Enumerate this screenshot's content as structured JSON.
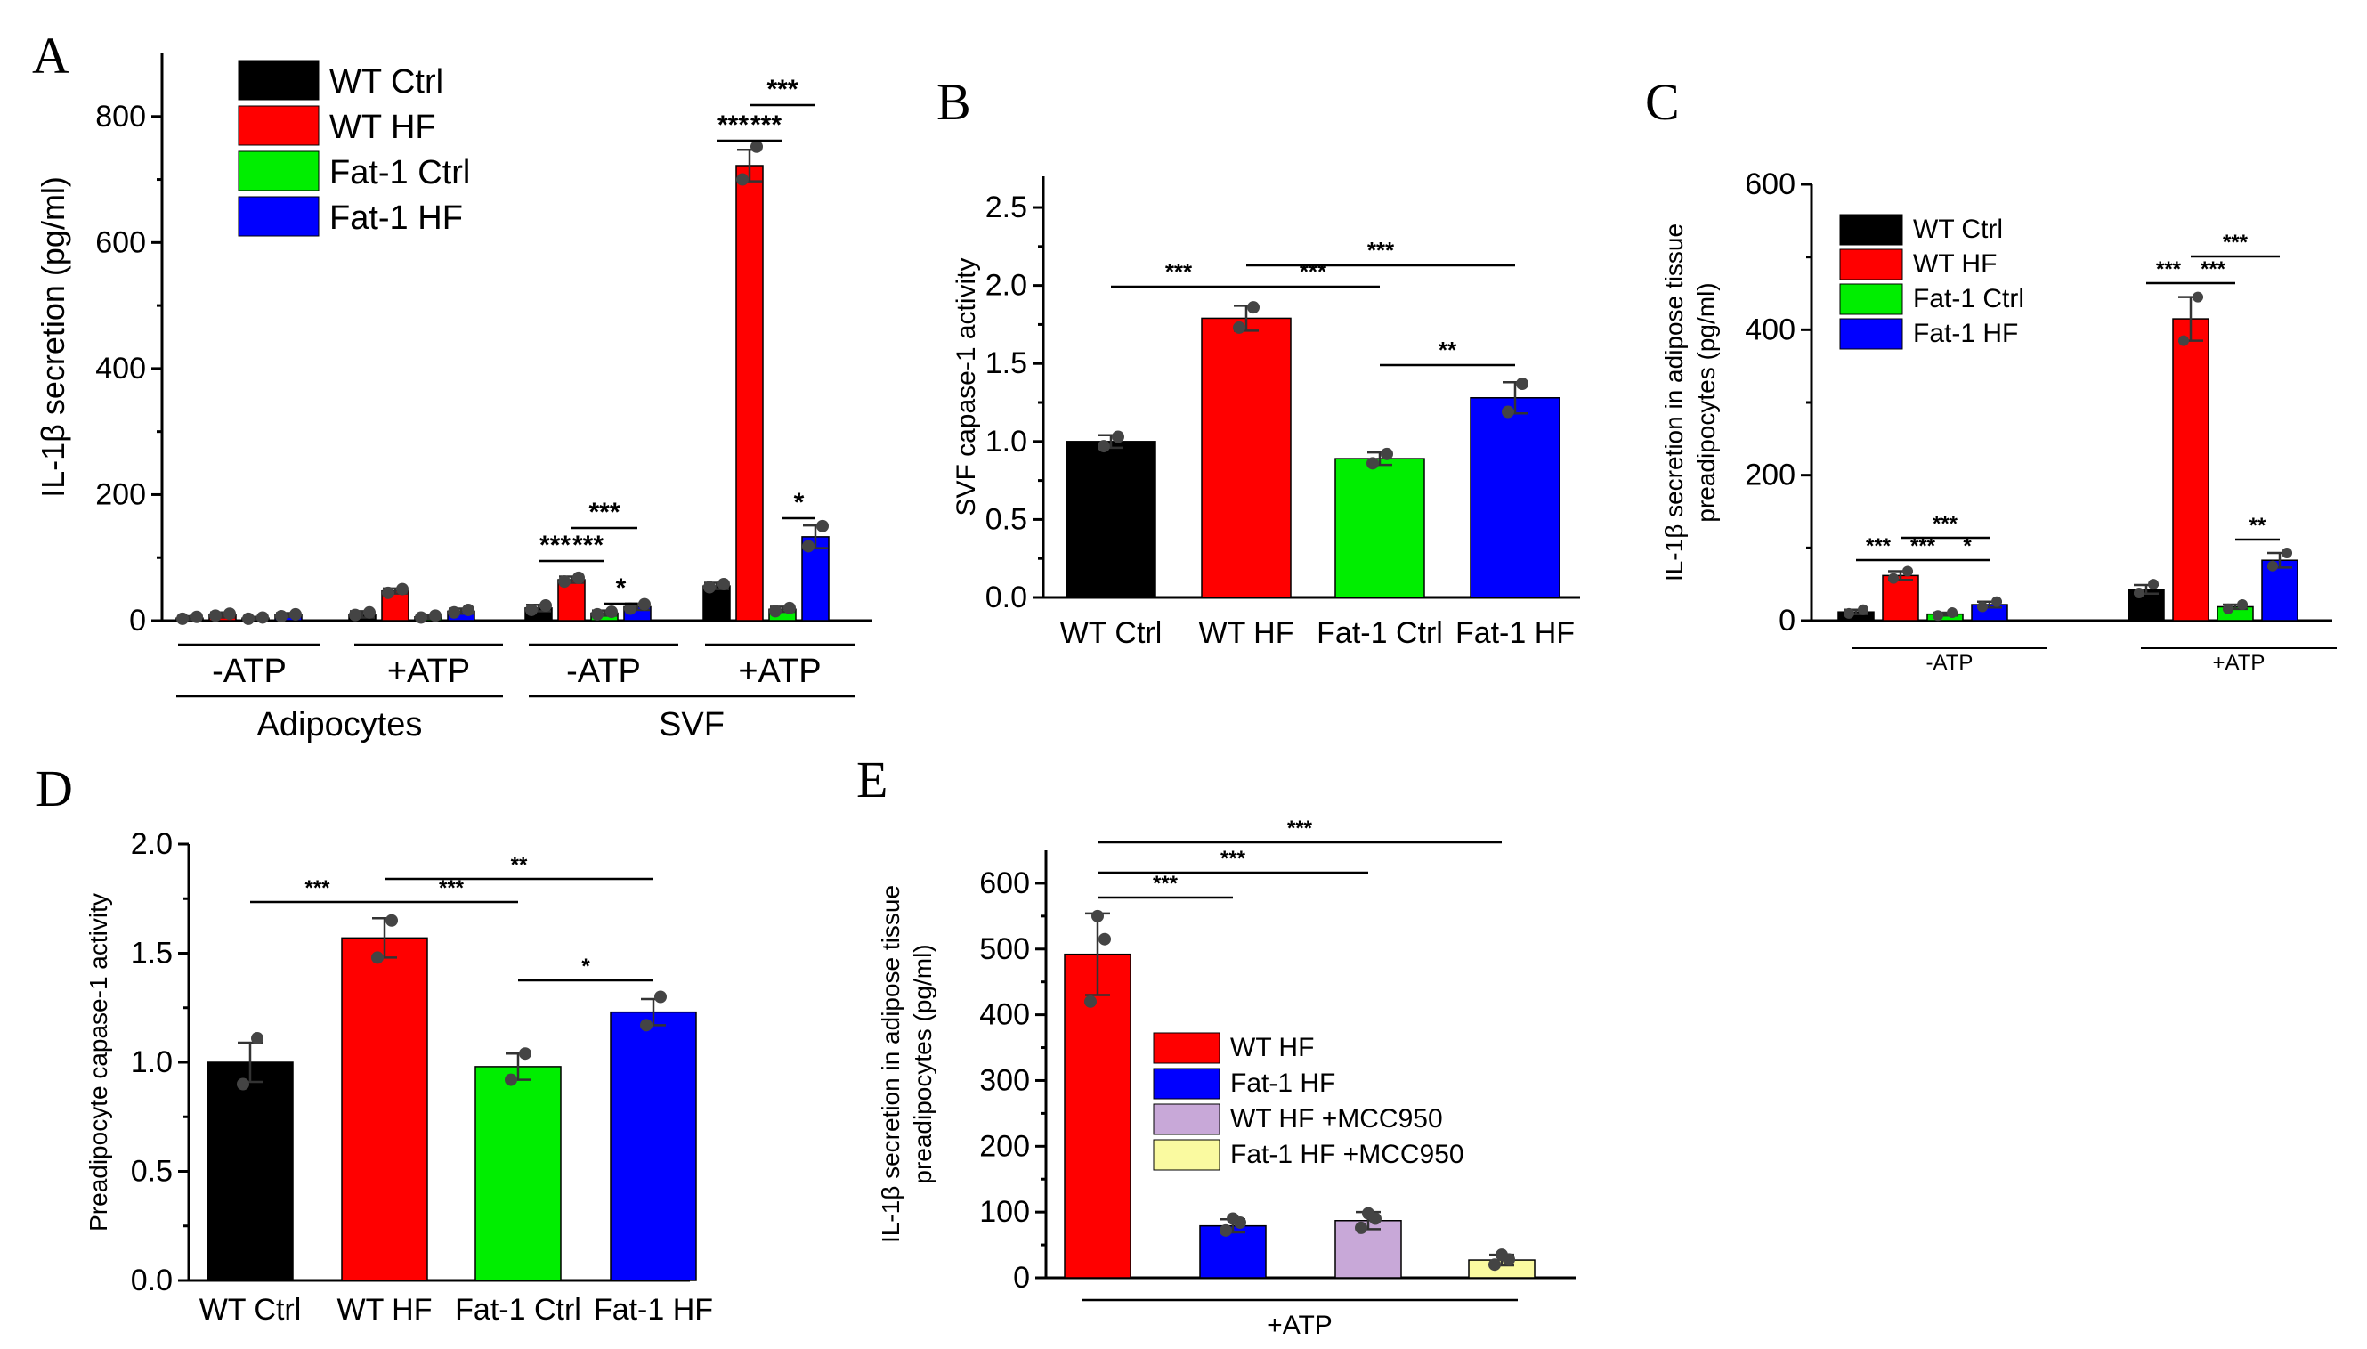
{
  "chart_data": [
    {
      "panel": "A",
      "type": "bar",
      "ylabel": "IL-1β secretion (pg/ml)",
      "ylim": [
        0,
        900
      ],
      "yticks": [
        0,
        200,
        400,
        600,
        800
      ],
      "legend": [
        "WT Ctrl",
        "WT HF",
        "Fat-1 Ctrl",
        "Fat-1 HF"
      ],
      "colors": [
        "#000000",
        "#ff0000",
        "#00ee00",
        "#0000ff"
      ],
      "groups": [
        {
          "label": "-ATP",
          "values": [
            4,
            9,
            4,
            9
          ],
          "errors": [
            3,
            4,
            2,
            3
          ],
          "points": [
            [
              3,
              6
            ],
            [
              8,
              11
            ],
            [
              3,
              5
            ],
            [
              7,
              10
            ]
          ]
        },
        {
          "label": "+ATP",
          "values": [
            10,
            47,
            6,
            15
          ],
          "errors": [
            5,
            4,
            3,
            4
          ],
          "points": [
            [
              9,
              13
            ],
            [
              44,
              50
            ],
            [
              5,
              8
            ],
            [
              13,
              17
            ]
          ]
        },
        {
          "label": "-ATP",
          "values": [
            20,
            65,
            12,
            22
          ],
          "errors": [
            5,
            5,
            4,
            5
          ],
          "points": [
            [
              17,
              24
            ],
            [
              62,
              68
            ],
            [
              10,
              14
            ],
            [
              19,
              26
            ]
          ]
        },
        {
          "label": "+ATP",
          "values": [
            55,
            722,
            18,
            133
          ],
          "errors": [
            5,
            25,
            4,
            18
          ],
          "points": [
            [
              53,
              58
            ],
            [
              700,
              752
            ],
            [
              15,
              20
            ],
            [
              118,
              150
            ]
          ]
        }
      ],
      "supergroups": [
        "Adipocytes",
        "SVF"
      ],
      "significance": [
        {
          "text": "***",
          "g": 2,
          "from": 0,
          "to": 1
        },
        {
          "text": "***",
          "g": 2,
          "from": 1,
          "to": 2
        },
        {
          "text": "***",
          "g": 2,
          "from": 1,
          "to": 3
        },
        {
          "text": "*",
          "g": 2,
          "from": 2,
          "to": 3
        },
        {
          "text": "***",
          "g": 3,
          "from": 0,
          "to": 1
        },
        {
          "text": "***",
          "g": 3,
          "from": 1,
          "to": 2
        },
        {
          "text": "***",
          "g": 3,
          "from": 1,
          "to": 3
        },
        {
          "text": "*",
          "g": 3,
          "from": 2,
          "to": 3
        }
      ]
    },
    {
      "panel": "B",
      "type": "bar",
      "ylabel": "SVF capase-1 activity",
      "ylim": [
        0,
        2.7
      ],
      "yticks": [
        0.0,
        0.5,
        1.0,
        1.5,
        2.0,
        2.5
      ],
      "categories": [
        "WT Ctrl",
        "WT HF",
        "Fat-1 Ctrl",
        "Fat-1 HF"
      ],
      "colors": [
        "#000000",
        "#ff0000",
        "#00ee00",
        "#0000ff"
      ],
      "values": [
        1.0,
        1.79,
        0.89,
        1.28
      ],
      "errors": [
        0.04,
        0.08,
        0.04,
        0.1
      ],
      "points": [
        [
          0.97,
          1.03
        ],
        [
          1.73,
          1.86
        ],
        [
          0.86,
          0.92
        ],
        [
          1.19,
          1.37
        ]
      ],
      "significance": [
        {
          "text": "***",
          "from": 0,
          "to": 1
        },
        {
          "text": "***",
          "from": 1,
          "to": 2
        },
        {
          "text": "***",
          "from": 1,
          "to": 3
        },
        {
          "text": "**",
          "from": 2,
          "to": 3
        }
      ]
    },
    {
      "panel": "C",
      "type": "bar",
      "ylabel_lines": [
        "IL-1β secretion in adipose tissue",
        "preadipocytes (pg/ml)"
      ],
      "ylim": [
        0,
        600
      ],
      "yticks": [
        0,
        200,
        400,
        600
      ],
      "legend": [
        "WT Ctrl",
        "WT HF",
        "Fat-1 Ctrl",
        "Fat-1 HF"
      ],
      "colors": [
        "#000000",
        "#ff0000",
        "#00ee00",
        "#0000ff"
      ],
      "groups": [
        {
          "label": "-ATP",
          "values": [
            12,
            62,
            9,
            22
          ],
          "errors": [
            3,
            6,
            2,
            4
          ],
          "points": [
            [
              10,
              15
            ],
            [
              58,
              68
            ],
            [
              7,
              11
            ],
            [
              19,
              26
            ]
          ]
        },
        {
          "label": "+ATP",
          "values": [
            43,
            415,
            19,
            83
          ],
          "errors": [
            6,
            30,
            3,
            10
          ],
          "points": [
            [
              38,
              50
            ],
            [
              385,
              445
            ],
            [
              16,
              22
            ],
            [
              75,
              93
            ]
          ]
        }
      ],
      "significance": [
        {
          "text": "***",
          "g": 0,
          "from": 0,
          "to": 1
        },
        {
          "text": "***",
          "g": 0,
          "from": 1,
          "to": 2
        },
        {
          "text": "***",
          "g": 0,
          "from": 1,
          "to": 3
        },
        {
          "text": "*",
          "g": 0,
          "from": 2,
          "to": 3
        },
        {
          "text": "***",
          "g": 1,
          "from": 0,
          "to": 1
        },
        {
          "text": "***",
          "g": 1,
          "from": 1,
          "to": 2
        },
        {
          "text": "***",
          "g": 1,
          "from": 1,
          "to": 3
        },
        {
          "text": "**",
          "g": 1,
          "from": 2,
          "to": 3
        }
      ]
    },
    {
      "panel": "D",
      "type": "bar",
      "ylabel": "Preadipocyte capase-1 activity",
      "ylim": [
        0,
        2.0
      ],
      "yticks": [
        0.0,
        0.5,
        1.0,
        1.5,
        2.0
      ],
      "categories": [
        "WT Ctrl",
        "WT HF",
        "Fat-1 Ctrl",
        "Fat-1 HF"
      ],
      "colors": [
        "#000000",
        "#ff0000",
        "#00ee00",
        "#0000ff"
      ],
      "values": [
        1.0,
        1.57,
        0.98,
        1.23
      ],
      "errors": [
        0.09,
        0.09,
        0.06,
        0.06
      ],
      "points": [
        [
          0.9,
          1.11
        ],
        [
          1.48,
          1.65
        ],
        [
          0.92,
          1.04
        ],
        [
          1.17,
          1.3
        ]
      ],
      "significance": [
        {
          "text": "***",
          "from": 0,
          "to": 1
        },
        {
          "text": "***",
          "from": 1,
          "to": 2
        },
        {
          "text": "**",
          "from": 1,
          "to": 3
        },
        {
          "text": "*",
          "from": 2,
          "to": 3
        }
      ]
    },
    {
      "panel": "E",
      "type": "bar",
      "ylabel_lines": [
        "IL-1β secretion in adipose tissue",
        "preadipocytes (pg/ml)"
      ],
      "ylim": [
        0,
        650
      ],
      "yticks": [
        0,
        100,
        200,
        300,
        400,
        500,
        600
      ],
      "categories": [
        "WT HF",
        "Fat-1 HF",
        "WT HF +MCC950",
        "Fat-1 HF +MCC950"
      ],
      "legend": [
        "WT HF",
        "Fat-1 HF",
        "WT HF +MCC950",
        "Fat-1 HF +MCC950"
      ],
      "colors": [
        "#ff0000",
        "#0000ff",
        "#c8a8d8",
        "#fafaa0"
      ],
      "xgroup": "+ATP",
      "values": [
        492,
        79,
        87,
        27
      ],
      "errors": [
        62,
        10,
        13,
        8
      ],
      "points": [
        [
          420,
          515,
          550
        ],
        [
          72,
          84,
          90
        ],
        [
          76,
          90,
          98
        ],
        [
          20,
          28,
          35
        ]
      ],
      "significance": [
        {
          "text": "***",
          "from": 0,
          "to": 1
        },
        {
          "text": "***",
          "from": 0,
          "to": 2
        },
        {
          "text": "***",
          "from": 0,
          "to": 3
        }
      ]
    }
  ]
}
